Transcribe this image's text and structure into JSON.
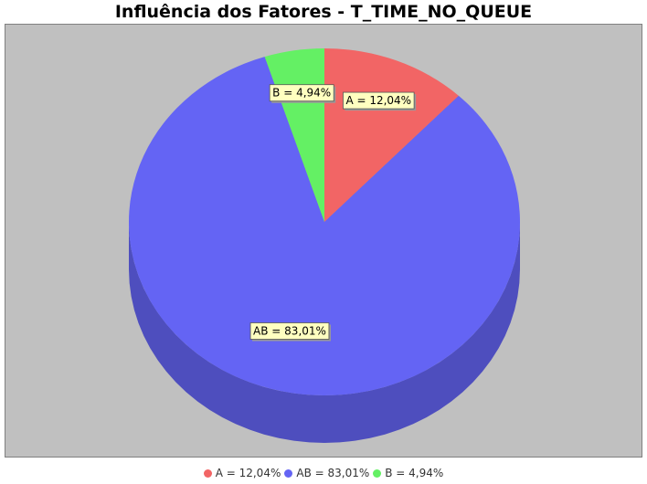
{
  "title": "Influência dos Fatores - T_TIME_NO_QUEUE",
  "chart_data": {
    "type": "pie",
    "title": "Influência dos Fatores - T_TIME_NO_QUEUE",
    "slices": [
      {
        "name": "A",
        "value": 12.04,
        "label": "A = 12,04%",
        "color": "#f26565"
      },
      {
        "name": "AB",
        "value": 83.01,
        "label": "AB = 83,01%",
        "color": "#6464f4"
      },
      {
        "name": "B",
        "value": 4.94,
        "label": "B = 4,94%",
        "color": "#64f064"
      }
    ],
    "style": "3d",
    "legend_position": "bottom"
  },
  "legend": {
    "items": [
      {
        "label": "A = 12,04%",
        "color": "#f26565"
      },
      {
        "label": "AB = 83,01%",
        "color": "#6464f4"
      },
      {
        "label": "B = 4,94%",
        "color": "#64f064"
      }
    ]
  },
  "colors": {
    "plot_background": "#c0c0c0",
    "label_background": "#ffffc0"
  }
}
